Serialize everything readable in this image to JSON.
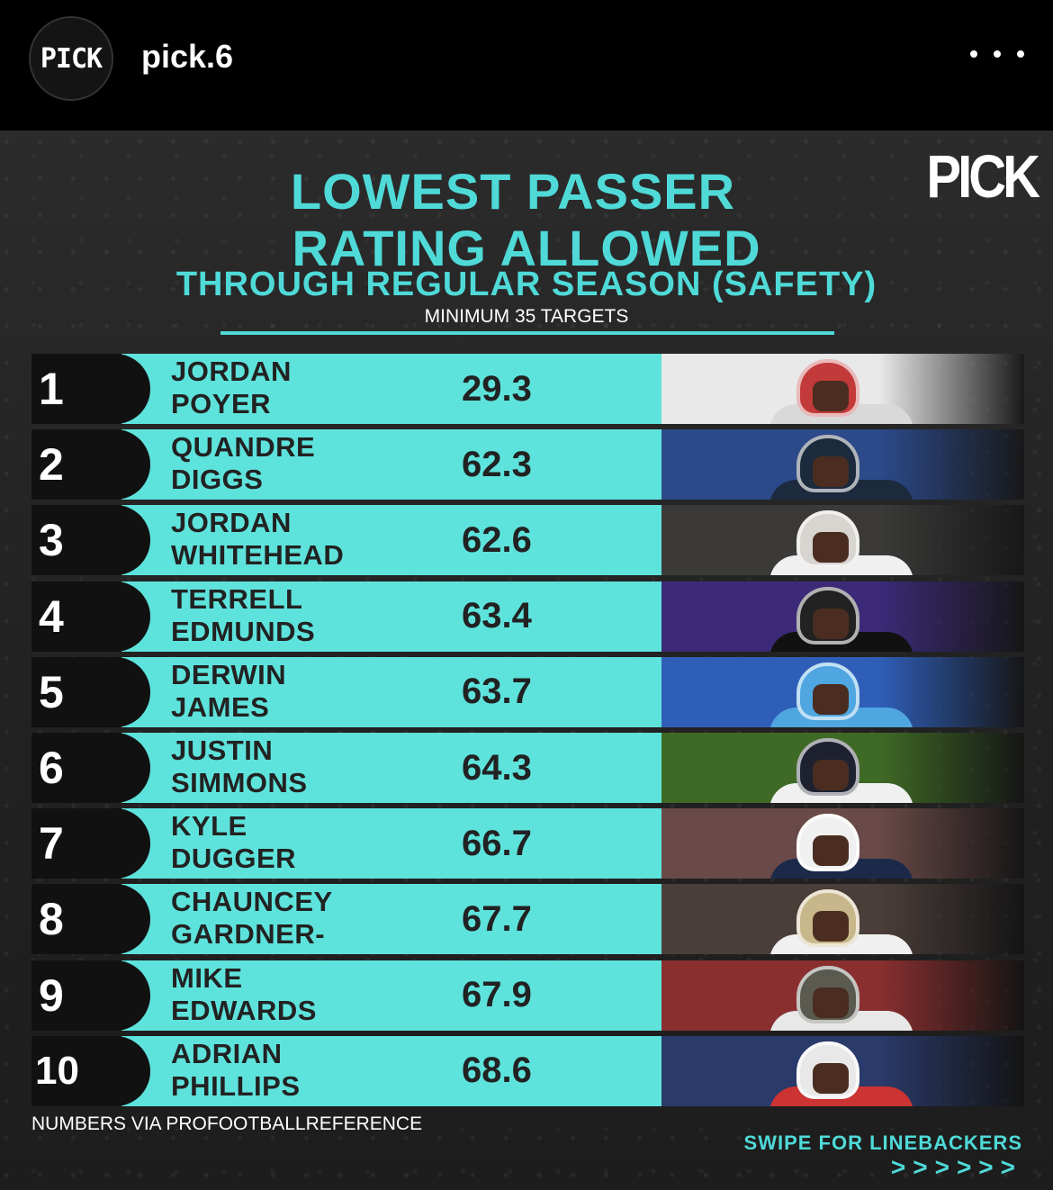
{
  "header": {
    "avatar_text": "PICK",
    "username": "pick.6",
    "more_icon": "more-horizontal-icon"
  },
  "post": {
    "brand_logo": "PICK",
    "title_line1": "LOWEST PASSER",
    "title_line2": "RATING ALLOWED",
    "title_line3": "THROUGH REGULAR SEASON (SAFETY)",
    "subtitle": "MINIMUM 35 TARGETS",
    "accent_color": "#5ee3dc",
    "rows": [
      {
        "rank": "1",
        "first": "JORDAN",
        "last": "POYER",
        "rating": "29.3",
        "photo_bg": "#e9e9e9",
        "helmet": "#c23a3a",
        "jersey": "#d9d9d9"
      },
      {
        "rank": "2",
        "first": "QUANDRE",
        "last": "DIGGS",
        "rating": "62.3",
        "photo_bg": "#2c4a8a",
        "helmet": "#1b2a3c",
        "jersey": "#1b2a3c"
      },
      {
        "rank": "3",
        "first": "JORDAN",
        "last": "WHITEHEAD",
        "rating": "62.6",
        "photo_bg": "#3b3a38",
        "helmet": "#d8d4d0",
        "jersey": "#f0f0f0"
      },
      {
        "rank": "4",
        "first": "TERRELL",
        "last": "EDMUNDS",
        "rating": "63.4",
        "photo_bg": "#3c2a78",
        "helmet": "#222222",
        "jersey": "#111111"
      },
      {
        "rank": "5",
        "first": "DERWIN",
        "last": "JAMES",
        "rating": "63.7",
        "photo_bg": "#2f5eb8",
        "helmet": "#4fa6e0",
        "jersey": "#4fa6e0"
      },
      {
        "rank": "6",
        "first": "JUSTIN",
        "last": "SIMMONS",
        "rating": "64.3",
        "photo_bg": "#3f6a26",
        "helmet": "#1e2230",
        "jersey": "#f0f0f0"
      },
      {
        "rank": "7",
        "first": "KYLE",
        "last": "DUGGER",
        "rating": "66.7",
        "photo_bg": "#6a4a48",
        "helmet": "#f0f0f0",
        "jersey": "#1b2a4a"
      },
      {
        "rank": "8",
        "first": "CHAUNCEY",
        "last": "GARDNER-",
        "rating": "67.7",
        "photo_bg": "#4a3e3a",
        "helmet": "#c8b78a",
        "jersey": "#f0f0f0"
      },
      {
        "rank": "9",
        "first": "MIKE",
        "last": "EDWARDS",
        "rating": "67.9",
        "photo_bg": "#8a2f2f",
        "helmet": "#5a5a50",
        "jersey": "#e8e8e8"
      },
      {
        "rank": "10",
        "first": "ADRIAN",
        "last": "PHILLIPS",
        "rating": "68.6",
        "photo_bg": "#2a3a6a",
        "helmet": "#e8e8e8",
        "jersey": "#cc3333"
      }
    ],
    "source": "NUMBERS VIA PROFOOTBALLREFERENCE",
    "swipe_text": "SWIPE FOR LINEBACKERS",
    "swipe_arrows": ">>>>>>"
  }
}
